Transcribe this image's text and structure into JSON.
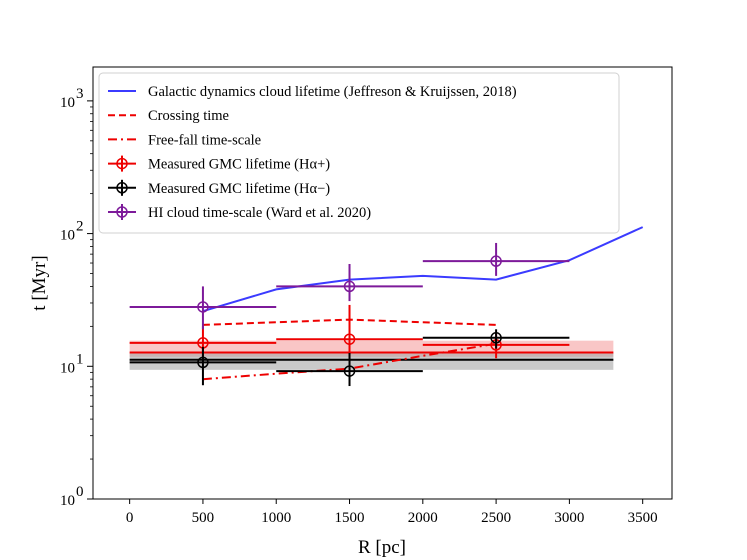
{
  "chart_data": {
    "type": "line",
    "xlabel": "R [pc]",
    "ylabel": "t [Myr]",
    "xlim": [
      -250,
      3700
    ],
    "yscale": "log",
    "ylim": [
      1,
      1800
    ],
    "x_ticks": [
      {
        "value": 0,
        "label": "0"
      },
      {
        "value": 500,
        "label": "500"
      },
      {
        "value": 1000,
        "label": "1000"
      },
      {
        "value": 1500,
        "label": "1500"
      },
      {
        "value": 2000,
        "label": "2000"
      },
      {
        "value": 2500,
        "label": "2500"
      },
      {
        "value": 3000,
        "label": "3000"
      },
      {
        "value": 3500,
        "label": "3500"
      }
    ],
    "y_ticks": [
      {
        "value": 1,
        "base": "10",
        "exp": "0"
      },
      {
        "value": 10,
        "base": "10",
        "exp": "1"
      },
      {
        "value": 100,
        "base": "10",
        "exp": "2"
      },
      {
        "value": 1000,
        "base": "10",
        "exp": "3"
      }
    ],
    "bands": [
      {
        "name": "Measured GMC lifetime (Hα+) range",
        "x": [
          0,
          3300
        ],
        "y": [
          11.8,
          15.6
        ],
        "color": "#f5a0a0"
      },
      {
        "name": "Measured GMC lifetime (Hα−) range",
        "x": [
          0,
          3300
        ],
        "y": [
          9.4,
          12.6
        ],
        "color": "#a6a6a6"
      }
    ],
    "hlines": [
      {
        "name": "Hα+ mean",
        "x": [
          0,
          3300
        ],
        "y": 12.7,
        "color": "#ee0000"
      },
      {
        "name": "Hα− mean",
        "x": [
          0,
          3300
        ],
        "y": 11.2,
        "color": "#000000"
      }
    ],
    "series": [
      {
        "name": "Galactic dynamics cloud lifetime (Jeffreson & Kruijssen, 2018)",
        "style": "solid",
        "color": "#3b3bff",
        "x": [
          500,
          1000,
          1500,
          2000,
          2500,
          3000,
          3500
        ],
        "y": [
          26,
          38,
          45,
          48,
          45,
          63,
          112
        ]
      },
      {
        "name": "Crossing time",
        "style": "dashed",
        "color": "#ee0000",
        "x": [
          500,
          1500,
          2500
        ],
        "y": [
          20.5,
          22.5,
          20.5
        ]
      },
      {
        "name": "Free-fall time-scale",
        "style": "dashdot",
        "color": "#ee0000",
        "x": [
          500,
          1000,
          1500,
          2000,
          2500
        ],
        "y": [
          8,
          8.8,
          9.6,
          12,
          14.8
        ]
      }
    ],
    "errorbars": [
      {
        "name": "Measured GMC lifetime (Hα+)",
        "color": "#ee0000",
        "points": [
          {
            "x": 500,
            "y": 15,
            "x_lo": 0,
            "x_hi": 1000,
            "y_lo": 11.5,
            "y_hi": 20
          },
          {
            "x": 1500,
            "y": 16,
            "x_lo": 1000,
            "x_hi": 2000,
            "y_lo": 11.2,
            "y_hi": 29
          },
          {
            "x": 2500,
            "y": 14.5,
            "x_lo": 2000,
            "x_hi": 3000,
            "y_lo": 11.5,
            "y_hi": 18
          }
        ]
      },
      {
        "name": "Measured GMC lifetime (Hα−)",
        "color": "#000000",
        "points": [
          {
            "x": 500,
            "y": 10.7,
            "x_lo": 0,
            "x_hi": 1000,
            "y_lo": 7.2,
            "y_hi": 14
          },
          {
            "x": 1500,
            "y": 9.2,
            "x_lo": 1000,
            "x_hi": 2000,
            "y_lo": 7.1,
            "y_hi": 12.6
          },
          {
            "x": 2500,
            "y": 16.4,
            "x_lo": 2000,
            "x_hi": 3000,
            "y_lo": 13.6,
            "y_hi": 19
          }
        ]
      },
      {
        "name": "HI cloud time-scale (Ward et al. 2020)",
        "color": "#7d1a9a",
        "points": [
          {
            "x": 500,
            "y": 28,
            "x_lo": 0,
            "x_hi": 1000,
            "y_lo": 19,
            "y_hi": 40
          },
          {
            "x": 1500,
            "y": 40,
            "x_lo": 1000,
            "x_hi": 2000,
            "y_lo": 31,
            "y_hi": 59
          },
          {
            "x": 2500,
            "y": 62,
            "x_lo": 2000,
            "x_hi": 3000,
            "y_lo": 48,
            "y_hi": 85
          }
        ]
      }
    ],
    "legend": {
      "position": "upper-left",
      "entries": [
        {
          "label": "Galactic dynamics cloud lifetime (Jeffreson & Kruijssen, 2018)",
          "kind": "solid",
          "color": "#3b3bff"
        },
        {
          "label": "Crossing time",
          "kind": "dashed",
          "color": "#ee0000"
        },
        {
          "label": "Free-fall time-scale",
          "kind": "dashdot",
          "color": "#ee0000"
        },
        {
          "label": "Measured GMC lifetime (Hα+)",
          "kind": "errorbar",
          "color": "#ee0000"
        },
        {
          "label": "Measured GMC lifetime (Hα−)",
          "kind": "errorbar",
          "color": "#000000"
        },
        {
          "label": "HI cloud time-scale (Ward et al. 2020)",
          "kind": "errorbar",
          "color": "#7d1a9a"
        }
      ]
    }
  }
}
